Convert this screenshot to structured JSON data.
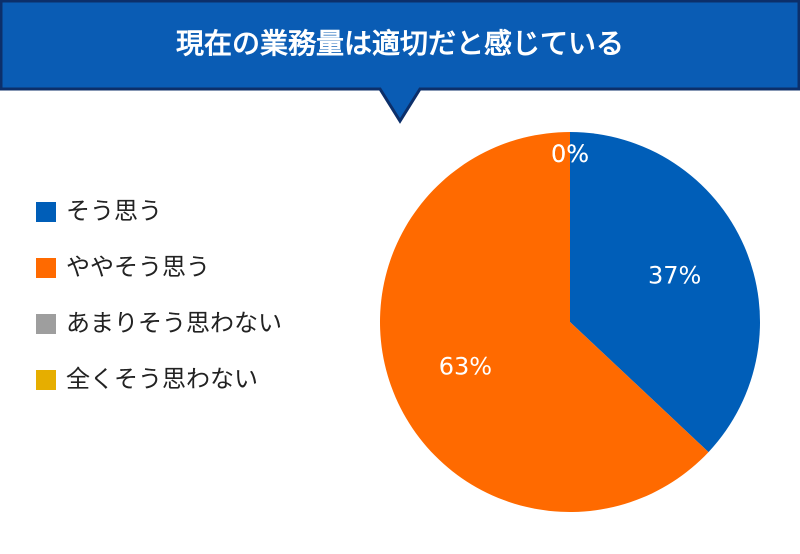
{
  "chart_data": {
    "type": "pie",
    "title": "現在の業務量は適切だと感じている",
    "categories": [
      "そう思う",
      "ややそう思う",
      "あまりそう思わない",
      "全くそう思わない"
    ],
    "values": [
      37,
      63,
      0,
      0
    ],
    "value_labels": [
      "37%",
      "63%",
      "0%",
      "0%"
    ],
    "colors": [
      "#005eb8",
      "#ff6a00",
      "#9e9e9e",
      "#e6ae00"
    ],
    "legend": "left"
  }
}
